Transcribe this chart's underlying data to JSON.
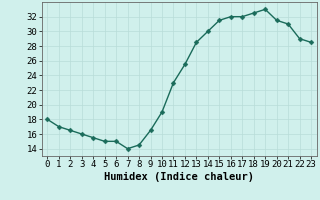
{
  "x": [
    0,
    1,
    2,
    3,
    4,
    5,
    6,
    7,
    8,
    9,
    10,
    11,
    12,
    13,
    14,
    15,
    16,
    17,
    18,
    19,
    20,
    21,
    22,
    23
  ],
  "y": [
    18,
    17,
    16.5,
    16,
    15.5,
    15,
    15,
    14,
    14.5,
    16.5,
    19,
    23,
    25.5,
    28.5,
    30,
    31.5,
    32,
    32,
    32.5,
    33,
    31.5,
    31,
    29,
    28.5
  ],
  "line_color": "#1a6b5a",
  "marker_color": "#1a6b5a",
  "bg_color": "#d0f0ec",
  "grid_color": "#b8ddd8",
  "xlabel": "Humidex (Indice chaleur)",
  "xlim": [
    -0.5,
    23.5
  ],
  "ylim": [
    13,
    34
  ],
  "yticks": [
    14,
    16,
    18,
    20,
    22,
    24,
    26,
    28,
    30,
    32
  ],
  "xticks": [
    0,
    1,
    2,
    3,
    4,
    5,
    6,
    7,
    8,
    9,
    10,
    11,
    12,
    13,
    14,
    15,
    16,
    17,
    18,
    19,
    20,
    21,
    22,
    23
  ],
  "tick_fontsize": 6.5,
  "xlabel_fontsize": 7.5,
  "line_width": 1.0,
  "marker_size": 2.5
}
